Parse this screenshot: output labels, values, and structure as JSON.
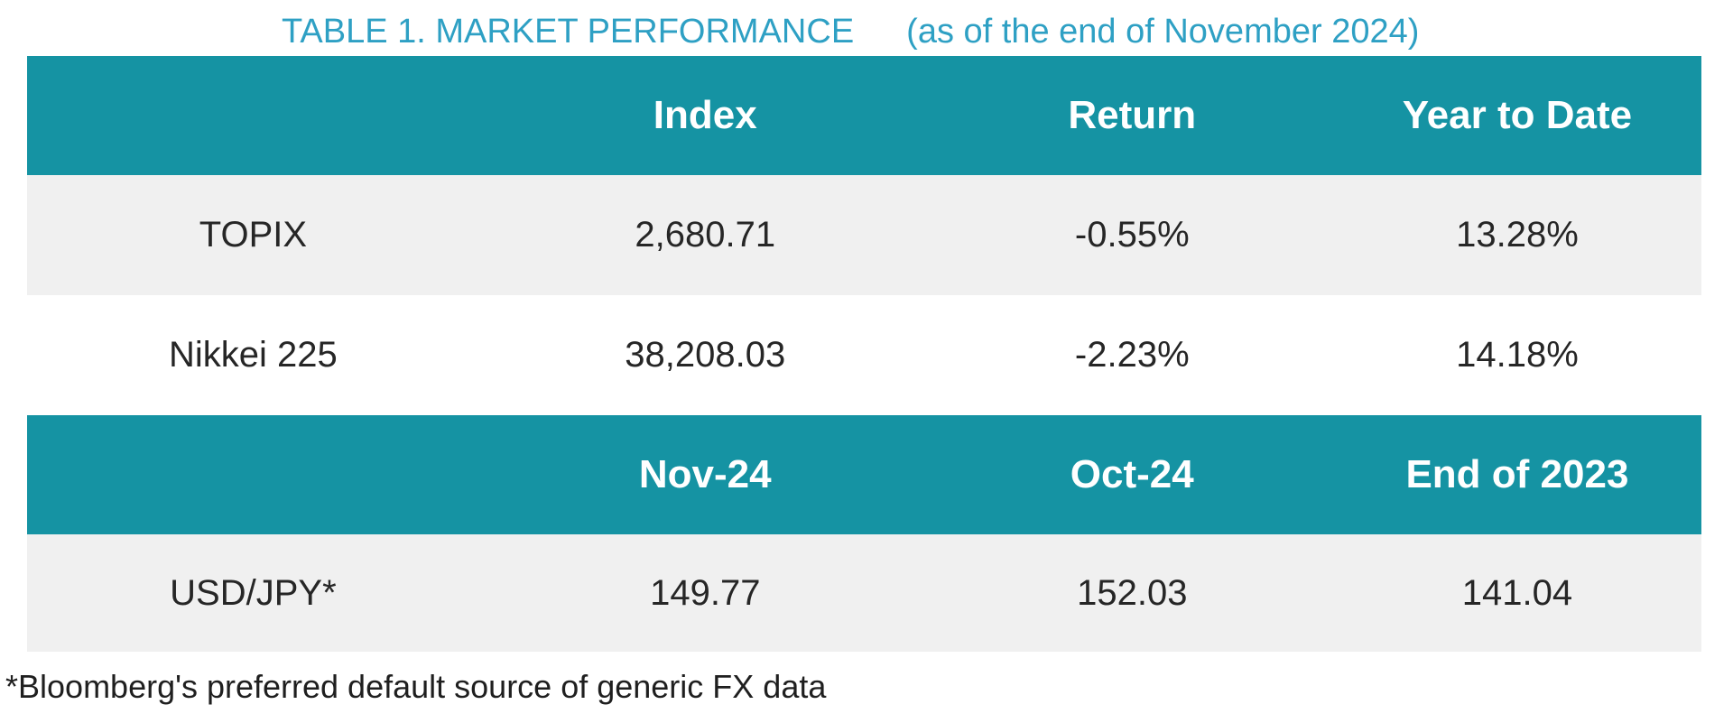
{
  "title": {
    "main": "TABLE 1. MARKET PERFORMANCE",
    "date_note": "(as of the end of November 2024)"
  },
  "table": {
    "sections": [
      {
        "headers": [
          "",
          "Index",
          "Return",
          "Year to Date"
        ],
        "rows": [
          {
            "label": "TOPIX",
            "values": [
              "2,680.71",
              "-0.55%",
              "13.28%"
            ]
          },
          {
            "label": "Nikkei 225",
            "values": [
              "38,208.03",
              "-2.23%",
              "14.18%"
            ]
          }
        ]
      },
      {
        "headers": [
          "",
          "Nov-24",
          "Oct-24",
          "End of 2023"
        ],
        "rows": [
          {
            "label": "USD/JPY*",
            "values": [
              "149.77",
              "152.03",
              "141.04"
            ]
          }
        ]
      }
    ]
  },
  "footnote": "*Bloomberg's preferred default source of generic FX data",
  "colors": {
    "header_band_bg": "#1593a3",
    "header_text": "#ffffff",
    "title_text": "#2ea0c4",
    "alt_row_bg": "#f0f0f0",
    "body_text": "#262626"
  }
}
